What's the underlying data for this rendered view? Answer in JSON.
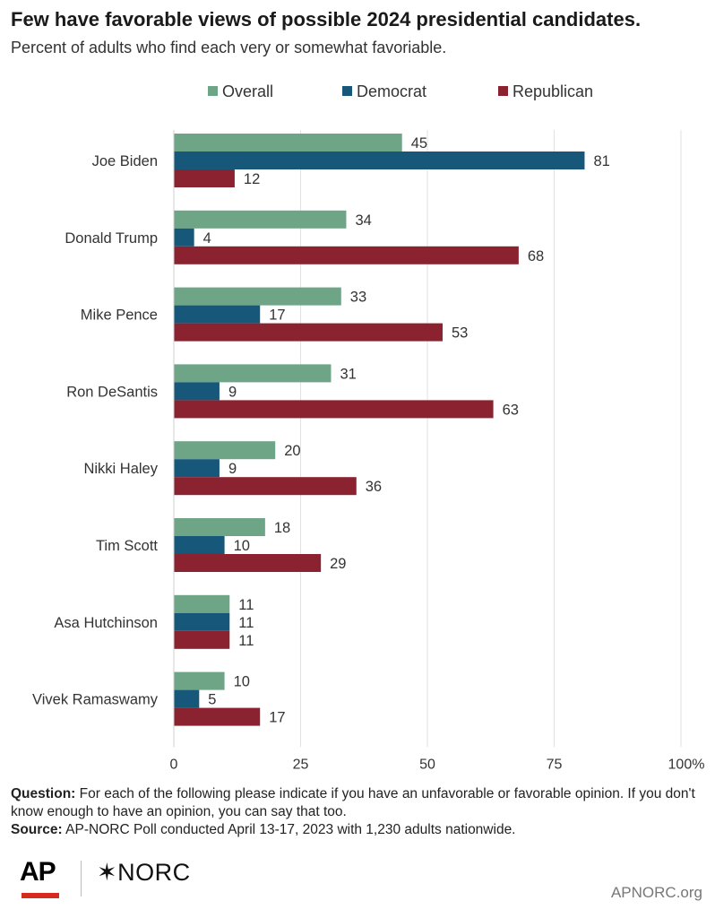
{
  "header": {
    "title": "Few have favorable views of possible 2024 presidential candidates.",
    "subtitle": "Percent of adults who find each very or somewhat favoriable."
  },
  "chart_data": {
    "type": "bar",
    "orientation": "horizontal",
    "categories": [
      "Joe Biden",
      "Donald Trump",
      "Mike Pence",
      "Ron DeSantis",
      "Nikki Haley",
      "Tim Scott",
      "Asa Hutchinson",
      "Vivek Ramaswamy"
    ],
    "series": [
      {
        "name": "Overall",
        "color": "#6fa587",
        "values": [
          45,
          34,
          33,
          31,
          20,
          18,
          11,
          10
        ]
      },
      {
        "name": "Democrat",
        "color": "#17587a",
        "values": [
          81,
          4,
          17,
          9,
          9,
          10,
          11,
          5
        ]
      },
      {
        "name": "Republican",
        "color": "#8b2230",
        "values": [
          12,
          68,
          53,
          63,
          36,
          29,
          11,
          17
        ]
      }
    ],
    "xlim": [
      0,
      100
    ],
    "xticks": [
      "0",
      "25",
      "50",
      "75",
      "100%"
    ],
    "grid": true,
    "legend": "top"
  },
  "notes": {
    "question_label": "Question:",
    "question_text": " For each of the following please indicate if you have an unfavorable or favorable opinion. If you don't know enough to have an opinion, you can say that too.",
    "source_label": "Source:",
    "source_text": " AP-NORC Poll conducted April 13-17, 2023 with 1,230 adults nationwide."
  },
  "footer": {
    "ap_logo": "AP",
    "norc_logo": "✶NORC",
    "site": "APNORC.org"
  }
}
